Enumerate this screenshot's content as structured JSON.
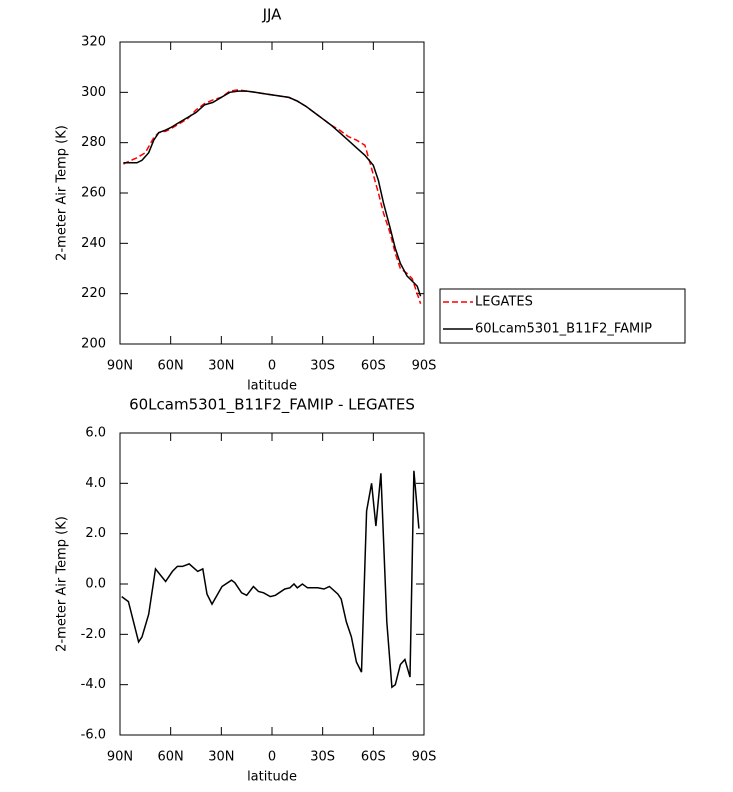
{
  "chart_data": [
    {
      "type": "line",
      "title": "JJA",
      "xlabel": "latitude",
      "ylabel": "2-meter Air Temp (K)",
      "xlim": [
        90,
        -90
      ],
      "xticks": [
        {
          "value": 90,
          "label": "90N"
        },
        {
          "value": 60,
          "label": "60N"
        },
        {
          "value": 30,
          "label": "30N"
        },
        0,
        {
          "value": -30,
          "label": "30S"
        },
        {
          "value": -60,
          "label": "60S"
        },
        {
          "value": -90,
          "label": "90S"
        }
      ],
      "ylim": [
        200,
        320
      ],
      "yticks": [
        200,
        220,
        240,
        260,
        280,
        300,
        320
      ],
      "legend": "outside-right",
      "series": [
        {
          "name": "LEGATES",
          "color": "#ff0000",
          "style": "dashed",
          "x": [
            88,
            85,
            80,
            75,
            70,
            67,
            63,
            60,
            55,
            50,
            45,
            40,
            35,
            30,
            25,
            20,
            15,
            10,
            5,
            0,
            -5,
            -10,
            -15,
            -20,
            -25,
            -30,
            -35,
            -40,
            -45,
            -50,
            -55,
            -58,
            -63,
            -66,
            -70,
            -73,
            -76,
            -80,
            -83,
            -86,
            -88
          ],
          "values": [
            271.5,
            272.5,
            274,
            276,
            282,
            284,
            284.5,
            285.5,
            287.5,
            289.5,
            293,
            295.5,
            297,
            298,
            300.5,
            301,
            300.5,
            300,
            299.5,
            299,
            298.5,
            298,
            296.5,
            294.5,
            292,
            289.5,
            287,
            285,
            282.5,
            281,
            279,
            272,
            260,
            252,
            244,
            236,
            230,
            228,
            226,
            220,
            216
          ]
        },
        {
          "name": "60Lcam5301_B11F2_FAMIP",
          "color": "#000000",
          "style": "solid",
          "x": [
            88,
            85,
            80,
            77,
            73,
            70,
            67,
            63,
            60,
            55,
            50,
            45,
            40,
            35,
            30,
            25,
            20,
            15,
            10,
            5,
            0,
            -5,
            -10,
            -15,
            -20,
            -25,
            -30,
            -35,
            -40,
            -45,
            -50,
            -55,
            -60,
            -63,
            -66,
            -70,
            -73,
            -76,
            -80,
            -83,
            -86,
            -88
          ],
          "values": [
            272,
            272,
            272,
            273,
            276,
            281,
            284,
            285,
            286,
            288,
            290,
            292,
            295,
            296,
            298,
            300,
            300.5,
            300.5,
            300,
            299.5,
            299,
            298.5,
            298,
            296.5,
            294.5,
            292,
            289.5,
            287,
            284,
            281,
            278,
            275,
            271,
            265,
            256,
            246,
            238,
            232,
            227,
            225,
            223,
            219
          ]
        }
      ]
    },
    {
      "type": "line",
      "title": "60Lcam5301_B11F2_FAMIP - LEGATES",
      "xlabel": "latitude",
      "ylabel": "2-meter Air Temp (K)",
      "xlim": [
        90,
        -90
      ],
      "xticks": [
        {
          "value": 90,
          "label": "90N"
        },
        {
          "value": 60,
          "label": "60N"
        },
        {
          "value": 30,
          "label": "30N"
        },
        0,
        {
          "value": -30,
          "label": "30S"
        },
        {
          "value": -60,
          "label": "60S"
        },
        {
          "value": -90,
          "label": "90S"
        }
      ],
      "ylim": [
        -6,
        6
      ],
      "yticks": [
        {
          "value": -6,
          "label": "-6.0"
        },
        {
          "value": -4,
          "label": "-4.0"
        },
        {
          "value": -2,
          "label": "-2.0"
        },
        {
          "value": 0,
          "label": "0.0"
        },
        {
          "value": 2,
          "label": "2.0"
        },
        {
          "value": 4,
          "label": "4.0"
        },
        {
          "value": 6,
          "label": "6.0"
        }
      ],
      "series": [
        {
          "color": "#000000",
          "style": "solid",
          "x": [
            89,
            85,
            79,
            77,
            73,
            69,
            63,
            59,
            56,
            53,
            49,
            44,
            41,
            38.5,
            35.5,
            29.6,
            24,
            22,
            18,
            15,
            11,
            8,
            5,
            1,
            -2,
            -7.6,
            -10.6,
            -13,
            -15,
            -18,
            -21,
            -27,
            -30.8,
            -34,
            -39,
            -41,
            -44,
            -47,
            -50,
            -53,
            -56,
            -59,
            -61.5,
            -64.5,
            -68,
            -71,
            -73,
            -76,
            -78.7,
            -81.7,
            -84,
            -87
          ],
          "values": [
            -0.5,
            -0.7,
            -2.3,
            -2.1,
            -1.2,
            0.6,
            0.1,
            0.5,
            0.7,
            0.7,
            0.8,
            0.5,
            0.6,
            -0.4,
            -0.8,
            -0.1,
            0.15,
            0.05,
            -0.35,
            -0.45,
            -0.1,
            -0.3,
            -0.35,
            -0.5,
            -0.45,
            -0.2,
            -0.15,
            0,
            -0.15,
            0,
            -0.15,
            -0.15,
            -0.2,
            -0.1,
            -0.4,
            -0.6,
            -1.5,
            -2.1,
            -3.1,
            -3.5,
            2.9,
            4,
            2.3,
            4.4,
            -1.5,
            -4.1,
            -4,
            -3.2,
            -3,
            -3.7,
            4.5,
            2.2
          ]
        }
      ]
    }
  ]
}
